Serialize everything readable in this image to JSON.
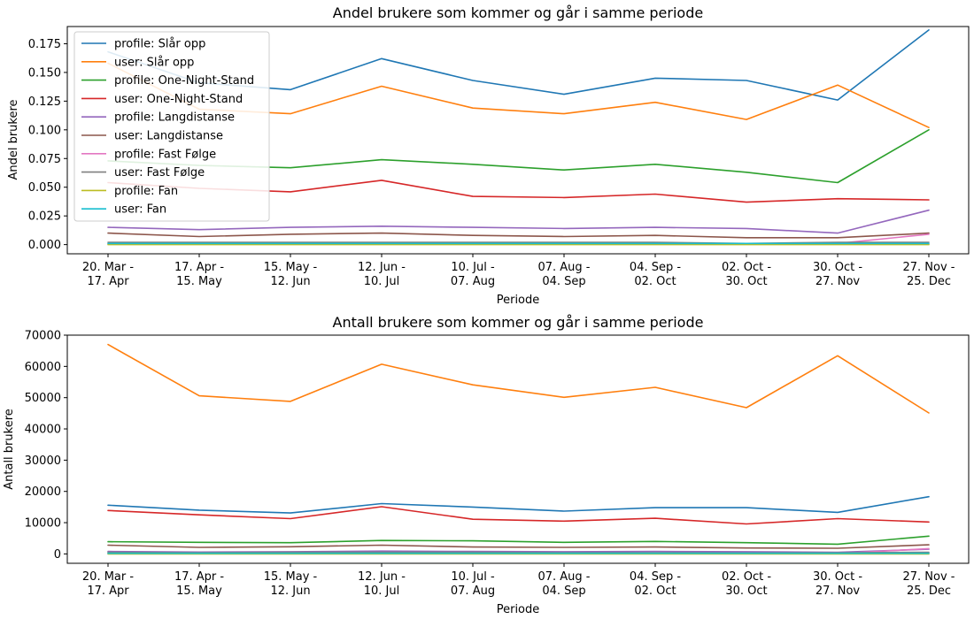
{
  "chart_data": [
    {
      "type": "line",
      "title": "Andel brukere som kommer og går i samme periode",
      "xlabel": "Periode",
      "ylabel": "Andel brukere",
      "ylim": [
        -0.008,
        0.19
      ],
      "yticks": [
        0.0,
        0.025,
        0.05,
        0.075,
        0.1,
        0.125,
        0.15,
        0.175
      ],
      "yticklabels": [
        "0.000",
        "0.025",
        "0.050",
        "0.075",
        "0.100",
        "0.125",
        "0.150",
        "0.175"
      ],
      "categories": [
        [
          "20. Mar -",
          "17. Apr"
        ],
        [
          "17. Apr -",
          "15. May"
        ],
        [
          "15. May -",
          "12. Jun"
        ],
        [
          "12. Jun -",
          "10. Jul"
        ],
        [
          "10. Jul -",
          "07. Aug"
        ],
        [
          "07. Aug -",
          "04. Sep"
        ],
        [
          "04. Sep -",
          "02. Oct"
        ],
        [
          "02. Oct -",
          "30. Oct"
        ],
        [
          "30. Oct -",
          "27. Nov"
        ],
        [
          "27. Nov -",
          "25. Dec"
        ]
      ],
      "legend_position": "top-left",
      "grid": false,
      "series": [
        {
          "name": "profile: Slår opp",
          "color": "#1f77b4",
          "values": [
            0.168,
            0.141,
            0.135,
            0.162,
            0.143,
            0.131,
            0.145,
            0.143,
            0.126,
            0.187
          ]
        },
        {
          "name": "user: Slår opp",
          "color": "#ff7f0e",
          "values": [
            0.158,
            0.118,
            0.114,
            0.138,
            0.119,
            0.114,
            0.124,
            0.109,
            0.139,
            0.102
          ]
        },
        {
          "name": "profile: One-Night-Stand",
          "color": "#2ca02c",
          "values": [
            0.073,
            0.069,
            0.067,
            0.074,
            0.07,
            0.065,
            0.07,
            0.063,
            0.054,
            0.1
          ]
        },
        {
          "name": "user: One-Night-Stand",
          "color": "#d62728",
          "values": [
            0.054,
            0.049,
            0.046,
            0.056,
            0.042,
            0.041,
            0.044,
            0.037,
            0.04,
            0.039
          ]
        },
        {
          "name": "profile: Langdistanse",
          "color": "#9467bd",
          "values": [
            0.015,
            0.013,
            0.015,
            0.016,
            0.015,
            0.014,
            0.015,
            0.014,
            0.01,
            0.03
          ]
        },
        {
          "name": "user: Langdistanse",
          "color": "#8c564b",
          "values": [
            0.01,
            0.007,
            0.009,
            0.01,
            0.008,
            0.007,
            0.008,
            0.006,
            0.006,
            0.01
          ]
        },
        {
          "name": "profile: Fast Følge",
          "color": "#e377c2",
          "values": [
            0.001,
            0.001,
            0.001,
            0.001,
            0.001,
            0.001,
            0.001,
            0.0005,
            0.001,
            0.009
          ]
        },
        {
          "name": "user: Fast Følge",
          "color": "#7f7f7f",
          "values": [
            0.002,
            0.002,
            0.002,
            0.002,
            0.002,
            0.002,
            0.002,
            0.001,
            0.002,
            0.002
          ]
        },
        {
          "name": "profile: Fan",
          "color": "#bcbd22",
          "values": [
            0.0,
            0.0,
            0.0,
            0.0,
            0.0,
            0.0,
            0.0,
            0.0,
            0.0,
            0.0
          ]
        },
        {
          "name": "user: Fan",
          "color": "#17becf",
          "values": [
            0.001,
            0.001,
            0.001,
            0.001,
            0.001,
            0.001,
            0.001,
            0.001,
            0.001,
            0.001
          ]
        }
      ]
    },
    {
      "type": "line",
      "title": "Antall brukere som kommer og går i samme periode",
      "xlabel": "Periode",
      "ylabel": "Antall brukere",
      "ylim": [
        -3000,
        70000
      ],
      "yticks": [
        0,
        10000,
        20000,
        30000,
        40000,
        50000,
        60000,
        70000
      ],
      "yticklabels": [
        "0",
        "10000",
        "20000",
        "30000",
        "40000",
        "50000",
        "60000",
        "70000"
      ],
      "categories": [
        [
          "20. Mar -",
          "17. Apr"
        ],
        [
          "17. Apr -",
          "15. May"
        ],
        [
          "15. May -",
          "12. Jun"
        ],
        [
          "12. Jun -",
          "10. Jul"
        ],
        [
          "10. Jul -",
          "07. Aug"
        ],
        [
          "07. Aug -",
          "04. Sep"
        ],
        [
          "04. Sep -",
          "02. Oct"
        ],
        [
          "02. Oct -",
          "30. Oct"
        ],
        [
          "30. Oct -",
          "27. Nov"
        ],
        [
          "27. Nov -",
          "25. Dec"
        ]
      ],
      "grid": false,
      "series": [
        {
          "color": "#1f77b4",
          "values": [
            15600,
            14000,
            13100,
            16100,
            15000,
            13700,
            14800,
            14800,
            13300,
            18300
          ]
        },
        {
          "color": "#ff7f0e",
          "values": [
            67000,
            50600,
            48800,
            60700,
            54100,
            50100,
            53300,
            46800,
            63400,
            45100
          ]
        },
        {
          "color": "#2ca02c",
          "values": [
            3900,
            3700,
            3600,
            4300,
            4200,
            3700,
            4000,
            3600,
            3100,
            5700
          ]
        },
        {
          "color": "#d62728",
          "values": [
            13900,
            12500,
            11300,
            15100,
            11100,
            10500,
            11400,
            9600,
            11300,
            10200
          ]
        },
        {
          "color": "#9467bd",
          "values": [
            800,
            600,
            700,
            900,
            800,
            700,
            800,
            700,
            500,
            1500
          ]
        },
        {
          "color": "#8c564b",
          "values": [
            2800,
            2100,
            2300,
            2800,
            2200,
            2100,
            2200,
            1900,
            1800,
            2900
          ]
        },
        {
          "color": "#e377c2",
          "values": [
            100,
            100,
            100,
            100,
            100,
            100,
            100,
            50,
            100,
            1700
          ]
        },
        {
          "color": "#7f7f7f",
          "values": [
            500,
            400,
            500,
            500,
            500,
            400,
            400,
            300,
            400,
            500
          ]
        },
        {
          "color": "#bcbd22",
          "values": [
            0,
            0,
            0,
            0,
            0,
            0,
            0,
            0,
            0,
            0
          ]
        },
        {
          "color": "#17becf",
          "values": [
            200,
            200,
            200,
            200,
            200,
            200,
            200,
            200,
            200,
            200
          ]
        }
      ]
    }
  ]
}
